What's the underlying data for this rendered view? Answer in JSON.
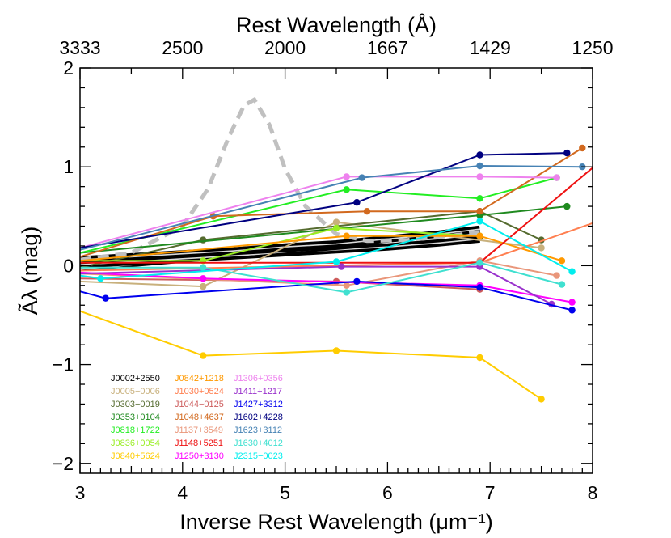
{
  "chart_data": {
    "type": "line",
    "title": "",
    "xlabel": "Inverse Rest Wavelength (μm⁻¹)",
    "ylabel": "Ãλ (mag)",
    "top_xlabel": "Rest Wavelength (Å)",
    "xlim": [
      3,
      8
    ],
    "ylim": [
      -2.1,
      2
    ],
    "x_ticks": [
      "3",
      "4",
      "5",
      "6",
      "7",
      "8"
    ],
    "y_ticks": [
      "−2",
      "−1",
      "0",
      "1",
      "2"
    ],
    "top_ticks": [
      {
        "x": 3,
        "label": "3333"
      },
      {
        "x": 4,
        "label": "2500"
      },
      {
        "x": 5,
        "label": "2000"
      },
      {
        "x": 6,
        "label": "1667"
      },
      {
        "x": 7,
        "label": "1429"
      },
      {
        "x": 8,
        "label": "1250"
      }
    ],
    "grid": false,
    "legend_position": "bottom-left",
    "reference_curves": [
      {
        "style": "thick-black",
        "x": [
          3.0,
          3.5,
          4.0,
          4.5,
          5.0,
          5.5,
          6.0,
          6.5,
          6.9
        ],
        "y": [
          0.06,
          0.09,
          0.12,
          0.15,
          0.19,
          0.22,
          0.27,
          0.32,
          0.37
        ]
      },
      {
        "style": "thick-black",
        "x": [
          3.0,
          3.5,
          4.0,
          4.5,
          5.0,
          5.5,
          6.0,
          6.5,
          6.9
        ],
        "y": [
          0.01,
          0.04,
          0.07,
          0.1,
          0.13,
          0.16,
          0.19,
          0.23,
          0.27
        ]
      },
      {
        "style": "gray-dashed",
        "x": [
          3.0,
          3.5,
          4.0,
          4.25,
          4.45,
          4.6,
          4.7,
          4.85,
          5.0,
          5.2,
          5.5,
          5.8,
          6.2,
          6.6,
          6.9
        ],
        "y": [
          0.06,
          0.13,
          0.4,
          0.78,
          1.3,
          1.62,
          1.68,
          1.42,
          0.98,
          0.6,
          0.32,
          0.25,
          0.26,
          0.3,
          0.34
        ]
      }
    ],
    "series": [
      {
        "name": "J0002+2550",
        "color": "#000000",
        "x": [
          3.0,
          6.9
        ],
        "y": [
          -0.05,
          0.29
        ]
      },
      {
        "name": "J0005−0006",
        "color": "#c8b07c",
        "x": [
          3.0,
          4.2,
          5.5,
          7.5
        ],
        "y": [
          -0.16,
          -0.21,
          0.44,
          0.18
        ]
      },
      {
        "name": "J0303−0019",
        "color": "#556b2f",
        "x": [
          3.0,
          4.2,
          6.9,
          7.5
        ],
        "y": [
          -0.02,
          0.26,
          0.55,
          0.26
        ]
      },
      {
        "name": "J0353+0104",
        "color": "#1f8a1f",
        "x": [
          3.0,
          6.9,
          7.75
        ],
        "y": [
          0.13,
          0.51,
          0.6
        ]
      },
      {
        "name": "J0818+1722",
        "color": "#22ee22",
        "x": [
          3.0,
          5.6,
          6.9,
          7.65
        ],
        "y": [
          0.13,
          0.77,
          0.68,
          0.89
        ]
      },
      {
        "name": "J0836+0054",
        "color": "#99ee22",
        "x": [
          3.0,
          4.2,
          5.5,
          6.9
        ],
        "y": [
          0.05,
          0.05,
          0.38,
          0.3
        ]
      },
      {
        "name": "J0840+5624",
        "color": "#ffcc00",
        "x": [
          3.0,
          4.2,
          5.5,
          6.9,
          7.5
        ],
        "y": [
          -0.46,
          -0.91,
          -0.86,
          -0.93,
          -1.35
        ]
      },
      {
        "name": "J0842+1218",
        "color": "#ff9900",
        "x": [
          3.0,
          5.6,
          6.9,
          7.7
        ],
        "y": [
          0.05,
          0.3,
          0.3,
          0.05
        ]
      },
      {
        "name": "J1030+0524",
        "color": "#ff7f50",
        "x": [
          3.0,
          6.9,
          8.0
        ],
        "y": [
          -0.05,
          0.03,
          0.43
        ]
      },
      {
        "name": "J1044−0125",
        "color": "#cd5c5c",
        "x": [
          3.0,
          5.5,
          6.9
        ],
        "y": [
          -0.13,
          -0.16,
          -0.24
        ]
      },
      {
        "name": "J1048+4637",
        "color": "#d2691e",
        "x": [
          3.0,
          4.3,
          5.8,
          6.9,
          7.9
        ],
        "y": [
          0.09,
          0.5,
          0.55,
          0.55,
          1.19
        ]
      },
      {
        "name": "J1137+3549",
        "color": "#e9967a",
        "x": [
          3.0,
          5.6,
          6.9,
          7.65
        ],
        "y": [
          -0.08,
          -0.2,
          0.05,
          -0.1
        ]
      },
      {
        "name": "J1148+5251",
        "color": "#ee1111",
        "x": [
          3.0,
          6.9,
          8.0
        ],
        "y": [
          0.03,
          0.03,
          0.99
        ]
      },
      {
        "name": "J1250+3130",
        "color": "#ff00ff",
        "x": [
          3.0,
          4.2,
          6.9,
          7.8
        ],
        "y": [
          -0.07,
          -0.13,
          -0.2,
          -0.37
        ]
      },
      {
        "name": "J1306+0356",
        "color": "#ee82ee",
        "x": [
          3.0,
          5.6,
          6.9,
          7.65
        ],
        "y": [
          0.18,
          0.9,
          0.9,
          0.89
        ]
      },
      {
        "name": "J1411+1217",
        "color": "#9932cc",
        "x": [
          3.0,
          5.55,
          6.9,
          7.6
        ],
        "y": [
          -0.08,
          -0.01,
          -0.01,
          -0.39
        ]
      },
      {
        "name": "J1427+3312",
        "color": "#0000ee",
        "x": [
          3.0,
          3.25,
          5.7,
          6.9,
          7.8
        ],
        "y": [
          -0.26,
          -0.33,
          -0.16,
          -0.22,
          -0.45
        ]
      },
      {
        "name": "J1602+4228",
        "color": "#000080",
        "x": [
          3.0,
          5.7,
          6.9,
          7.75
        ],
        "y": [
          0.18,
          0.64,
          1.12,
          1.14
        ]
      },
      {
        "name": "J1623+3112",
        "color": "#4682b4",
        "x": [
          3.0,
          5.75,
          6.9,
          7.9
        ],
        "y": [
          0.16,
          0.89,
          1.01,
          1.0
        ]
      },
      {
        "name": "J1630+4012",
        "color": "#40e0d0",
        "x": [
          3.0,
          4.2,
          5.6,
          6.9,
          7.7
        ],
        "y": [
          -0.02,
          -0.02,
          -0.27,
          0.03,
          -0.19
        ]
      },
      {
        "name": "J2315−0023",
        "color": "#00eeee",
        "x": [
          3.0,
          3.2,
          5.5,
          6.9,
          7.8
        ],
        "y": [
          -0.1,
          -0.13,
          0.04,
          0.45,
          -0.06
        ]
      }
    ]
  }
}
